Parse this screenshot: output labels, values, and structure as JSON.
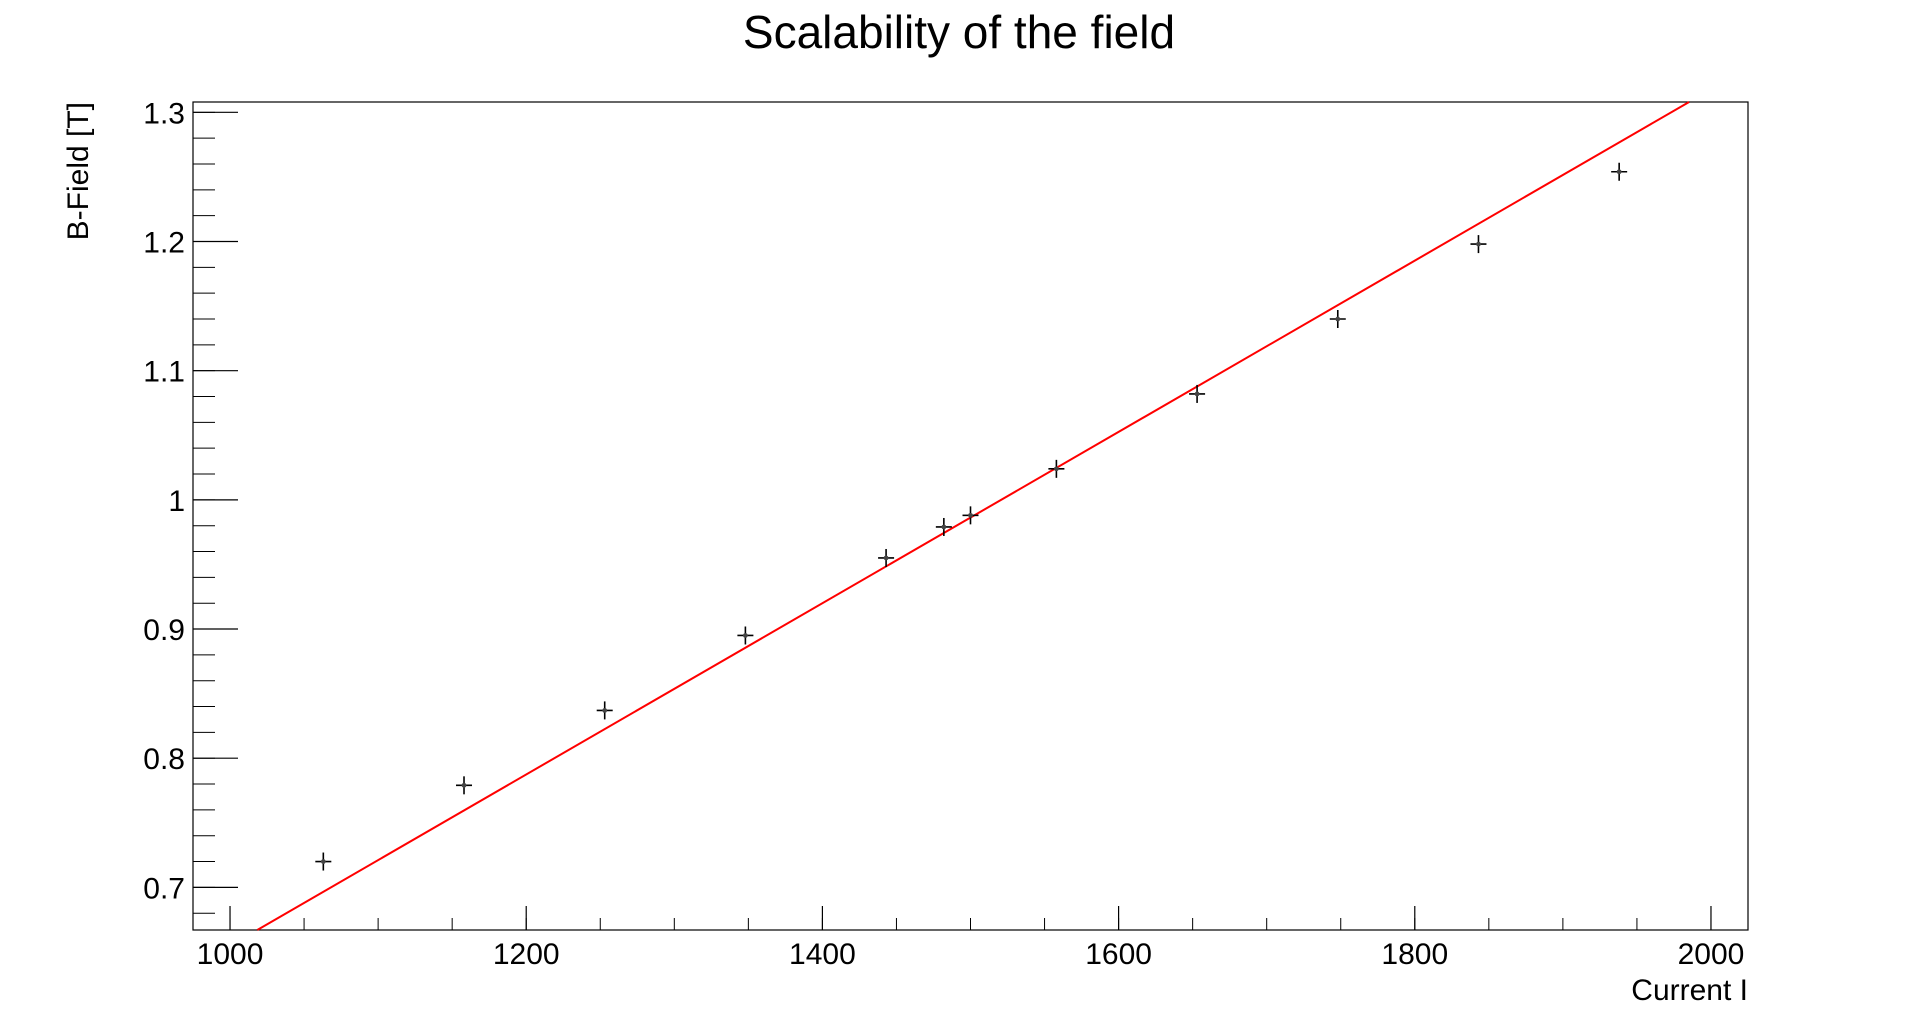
{
  "chart_data": {
    "type": "scatter",
    "title": "Scalability of the field",
    "xlabel": "Current I",
    "ylabel": "B-Field [T]",
    "xlim": [
      975,
      2025
    ],
    "ylim": [
      0.667,
      1.308
    ],
    "xticks": [
      1000,
      1200,
      1400,
      1600,
      1800,
      2000
    ],
    "xtick_labels": [
      "1000",
      "1200",
      "1400",
      "1600",
      "1800",
      "2000"
    ],
    "yticks": [
      0.7,
      0.8,
      0.9,
      1.0,
      1.1,
      1.2,
      1.3
    ],
    "ytick_labels": [
      "0.7",
      "0.8",
      "0.9",
      "1",
      "1.1",
      "1.2",
      "1.3"
    ],
    "grid": false,
    "legend": "none",
    "series": [
      {
        "marker": "cross-with-error-bars",
        "color": "#000000",
        "x": [
          1063,
          1158,
          1253,
          1348,
          1443,
          1482,
          1500,
          1558,
          1653,
          1748,
          1843,
          1938
        ],
        "y": [
          0.72,
          0.779,
          0.837,
          0.895,
          0.955,
          0.979,
          0.988,
          1.024,
          1.082,
          1.14,
          1.198,
          1.254
        ]
      }
    ],
    "fit_line": {
      "color": "#ff0000",
      "slope": 0.000663,
      "intercept": -0.0082
    }
  }
}
